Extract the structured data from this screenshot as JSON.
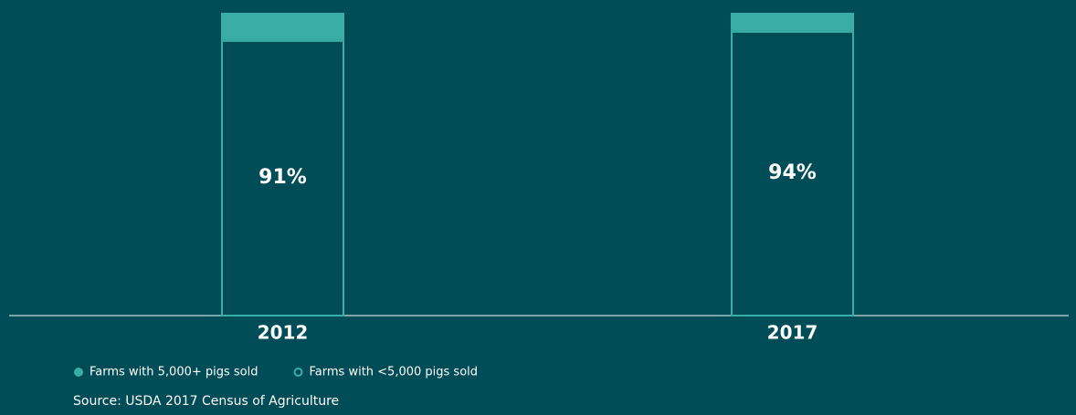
{
  "chart_data": {
    "type": "stacked_bar",
    "categories": [
      "2012",
      "2017"
    ],
    "series": [
      {
        "name": "Farms with 5,000+ pigs sold",
        "color": "#3aada6",
        "style": "filled",
        "values": [
          9,
          6
        ]
      },
      {
        "name": "Farms with <5,000 pigs sold",
        "color": "#3aada6",
        "style": "outline",
        "values": [
          91,
          94
        ],
        "value_labels": [
          "91%",
          "94%"
        ]
      }
    ],
    "ylim": [
      0,
      100
    ],
    "source": "Source: USDA 2017 Census of Agriculture"
  }
}
